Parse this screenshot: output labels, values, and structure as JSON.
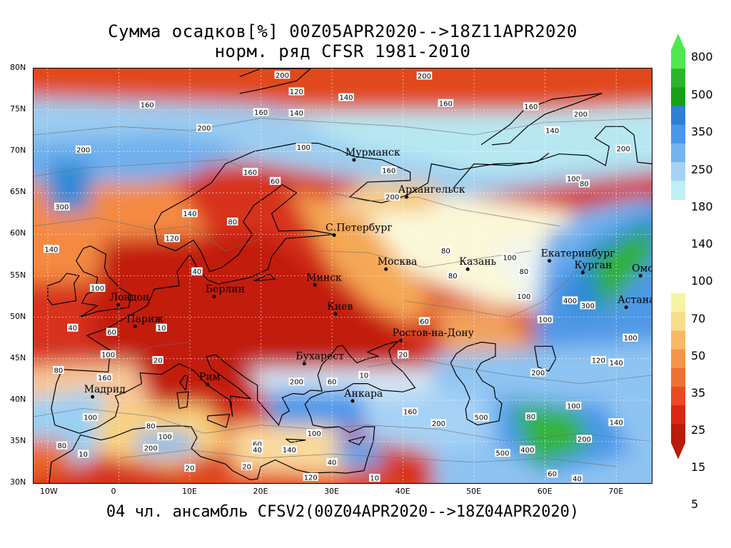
{
  "title_line1": "Сумма осадков[%] 00Z05APR2020-->18Z11APR2020",
  "title_line2": "норм. ряд CFSR 1981-2010",
  "footer": "04 чл. ансамбль CFSV2(00Z04APR2020-->18Z04APR2020)",
  "map": {
    "lon_range": [
      -12,
      75
    ],
    "lat_range": [
      30,
      80
    ],
    "lat_ticks": [
      "80N",
      "75N",
      "70N",
      "65N",
      "60N",
      "55N",
      "50N",
      "45N",
      "40N",
      "35N",
      "30N"
    ],
    "lon_ticks": [
      "10W",
      "0",
      "10E",
      "20E",
      "30E",
      "40E",
      "50E",
      "60E",
      "70E"
    ]
  },
  "cities": [
    {
      "name": "Мурманск",
      "lon": 33.1,
      "lat": 68.97
    },
    {
      "name": "Архангельск",
      "lon": 40.5,
      "lat": 64.5
    },
    {
      "name": "С.Петербург",
      "lon": 30.3,
      "lat": 59.9
    },
    {
      "name": "Москва",
      "lon": 37.6,
      "lat": 55.8
    },
    {
      "name": "Казань",
      "lon": 49.1,
      "lat": 55.8
    },
    {
      "name": "Екатеринбург",
      "lon": 60.6,
      "lat": 56.8
    },
    {
      "name": "Курган",
      "lon": 65.3,
      "lat": 55.4
    },
    {
      "name": "Омск",
      "lon": 73.4,
      "lat": 55.0
    },
    {
      "name": "Астана",
      "lon": 71.4,
      "lat": 51.2
    },
    {
      "name": "Минск",
      "lon": 27.6,
      "lat": 53.9
    },
    {
      "name": "Киев",
      "lon": 30.5,
      "lat": 50.4
    },
    {
      "name": "Берлин",
      "lon": 13.4,
      "lat": 52.5
    },
    {
      "name": "Лондон",
      "lon": -0.1,
      "lat": 51.5
    },
    {
      "name": "Париж",
      "lon": 2.3,
      "lat": 48.9
    },
    {
      "name": "Ростов-на-Дону",
      "lon": 39.7,
      "lat": 47.2
    },
    {
      "name": "Бухарест",
      "lon": 26.1,
      "lat": 44.4
    },
    {
      "name": "Рим",
      "lon": 12.5,
      "lat": 41.9
    },
    {
      "name": "Мадрид",
      "lon": -3.7,
      "lat": 40.4
    },
    {
      "name": "Анкара",
      "lon": 32.9,
      "lat": 39.9
    }
  ],
  "contour_labels": [
    {
      "text": "200",
      "lon": 23,
      "lat": 79.2
    },
    {
      "text": "200",
      "lon": 43,
      "lat": 79.1
    },
    {
      "text": "120",
      "lon": 25,
      "lat": 77.2
    },
    {
      "text": "140",
      "lon": 32,
      "lat": 76.5
    },
    {
      "text": "160",
      "lon": 46,
      "lat": 75.8
    },
    {
      "text": "160",
      "lon": 4,
      "lat": 75.6
    },
    {
      "text": "160",
      "lon": 20,
      "lat": 74.7
    },
    {
      "text": "140",
      "lon": 25,
      "lat": 74.6
    },
    {
      "text": "160",
      "lon": 58,
      "lat": 75.4
    },
    {
      "text": "200",
      "lon": 65,
      "lat": 74.5
    },
    {
      "text": "200",
      "lon": 12,
      "lat": 72.8
    },
    {
      "text": "140",
      "lon": 61,
      "lat": 72.5
    },
    {
      "text": "200",
      "lon": -5,
      "lat": 70.2
    },
    {
      "text": "200",
      "lon": 71,
      "lat": 70.3
    },
    {
      "text": "100",
      "lon": 26,
      "lat": 70.5
    },
    {
      "text": "160",
      "lon": 18.5,
      "lat": 67.5
    },
    {
      "text": "160",
      "lon": 38,
      "lat": 67.7
    },
    {
      "text": "60",
      "lon": 22,
      "lat": 66.4
    },
    {
      "text": "300",
      "lon": -8,
      "lat": 63.3
    },
    {
      "text": "100",
      "lon": 64,
      "lat": 66.7
    },
    {
      "text": "80",
      "lon": 65.5,
      "lat": 66.1
    },
    {
      "text": "200",
      "lon": 38.5,
      "lat": 64.5
    },
    {
      "text": "140",
      "lon": 10,
      "lat": 62.5
    },
    {
      "text": "80",
      "lon": 16,
      "lat": 61.5
    },
    {
      "text": "140",
      "lon": -9.5,
      "lat": 58.2
    },
    {
      "text": "120",
      "lon": 7.5,
      "lat": 59.5
    },
    {
      "text": "80",
      "lon": 46,
      "lat": 58
    },
    {
      "text": "100",
      "lon": 55,
      "lat": 57.2
    },
    {
      "text": "80",
      "lon": 57,
      "lat": 55.5
    },
    {
      "text": "80",
      "lon": 47,
      "lat": 55
    },
    {
      "text": "100",
      "lon": -3,
      "lat": 53.5
    },
    {
      "text": "40",
      "lon": 11,
      "lat": 55.5
    },
    {
      "text": "400",
      "lon": 63.5,
      "lat": 52
    },
    {
      "text": "300",
      "lon": 66,
      "lat": 51.4
    },
    {
      "text": "100",
      "lon": 57,
      "lat": 52.5
    },
    {
      "text": "100",
      "lon": 60,
      "lat": 49.7
    },
    {
      "text": "40",
      "lon": -6.5,
      "lat": 48.7
    },
    {
      "text": "60",
      "lon": -1,
      "lat": 48.2
    },
    {
      "text": "60",
      "lon": 43,
      "lat": 49.5
    },
    {
      "text": "10",
      "lon": 6,
      "lat": 48.7
    },
    {
      "text": "100",
      "lon": -1.5,
      "lat": 45.5
    },
    {
      "text": "20",
      "lon": 5.5,
      "lat": 44.8
    },
    {
      "text": "20",
      "lon": 40,
      "lat": 45.5
    },
    {
      "text": "100",
      "lon": 72,
      "lat": 47.5
    },
    {
      "text": "80",
      "lon": -8.5,
      "lat": 43.6
    },
    {
      "text": "160",
      "lon": -2,
      "lat": 42.7
    },
    {
      "text": "10",
      "lon": 34.5,
      "lat": 43
    },
    {
      "text": "200",
      "lon": 25,
      "lat": 42.2
    },
    {
      "text": "60",
      "lon": 30,
      "lat": 42.2
    },
    {
      "text": "200",
      "lon": 59,
      "lat": 43.3
    },
    {
      "text": "120",
      "lon": 67.5,
      "lat": 44.8
    },
    {
      "text": "140",
      "lon": 70,
      "lat": 44.5
    },
    {
      "text": "100",
      "lon": -4,
      "lat": 37.9
    },
    {
      "text": "80",
      "lon": 4.5,
      "lat": 36.9
    },
    {
      "text": "200",
      "lon": 4.5,
      "lat": 34.2
    },
    {
      "text": "100",
      "lon": 6.5,
      "lat": 35.6
    },
    {
      "text": "100",
      "lon": 27.5,
      "lat": 36
    },
    {
      "text": "160",
      "lon": 41,
      "lat": 38.6
    },
    {
      "text": "200",
      "lon": 45,
      "lat": 37.2
    },
    {
      "text": "500",
      "lon": 51,
      "lat": 37.9
    },
    {
      "text": "500",
      "lon": 54,
      "lat": 33.6
    },
    {
      "text": "400",
      "lon": 57.5,
      "lat": 34
    },
    {
      "text": "200",
      "lon": 65.5,
      "lat": 35.3
    },
    {
      "text": "80",
      "lon": 58,
      "lat": 38
    },
    {
      "text": "100",
      "lon": 64,
      "lat": 39.3
    },
    {
      "text": "140",
      "lon": 70,
      "lat": 37.3
    },
    {
      "text": "80",
      "lon": -8,
      "lat": 34.5
    },
    {
      "text": "10",
      "lon": -5,
      "lat": 33.5
    },
    {
      "text": "20",
      "lon": 10,
      "lat": 31.8
    },
    {
      "text": "20",
      "lon": 18,
      "lat": 32
    },
    {
      "text": "40",
      "lon": 30,
      "lat": 32.5
    },
    {
      "text": "120",
      "lon": 27,
      "lat": 30.7
    },
    {
      "text": "10",
      "lon": 36,
      "lat": 30.6
    },
    {
      "text": "60",
      "lon": 61,
      "lat": 31.1
    },
    {
      "text": "40",
      "lon": 64.5,
      "lat": 30.5
    },
    {
      "text": "140",
      "lon": 24,
      "lat": 34
    },
    {
      "text": "60",
      "lon": 19.5,
      "lat": 34.7
    },
    {
      "text": "40",
      "lon": 19.5,
      "lat": 34
    }
  ],
  "colorbar": {
    "levels": [
      "800",
      "500",
      "350",
      "250",
      "180",
      "140",
      "100",
      "70",
      "50",
      "35",
      "25",
      "15",
      "5"
    ],
    "upper_colors": [
      "#4fe84f",
      "#2cb52c",
      "#17a017",
      "#2f7fd8",
      "#4a98ea",
      "#76b3f0",
      "#a6d2f5",
      "#bfeef4"
    ],
    "lower_colors": [
      "#f6f4a2",
      "#f9dd8f",
      "#f8b866",
      "#f39649",
      "#ee7134",
      "#e84b23",
      "#d82812",
      "#b91c07"
    ]
  }
}
